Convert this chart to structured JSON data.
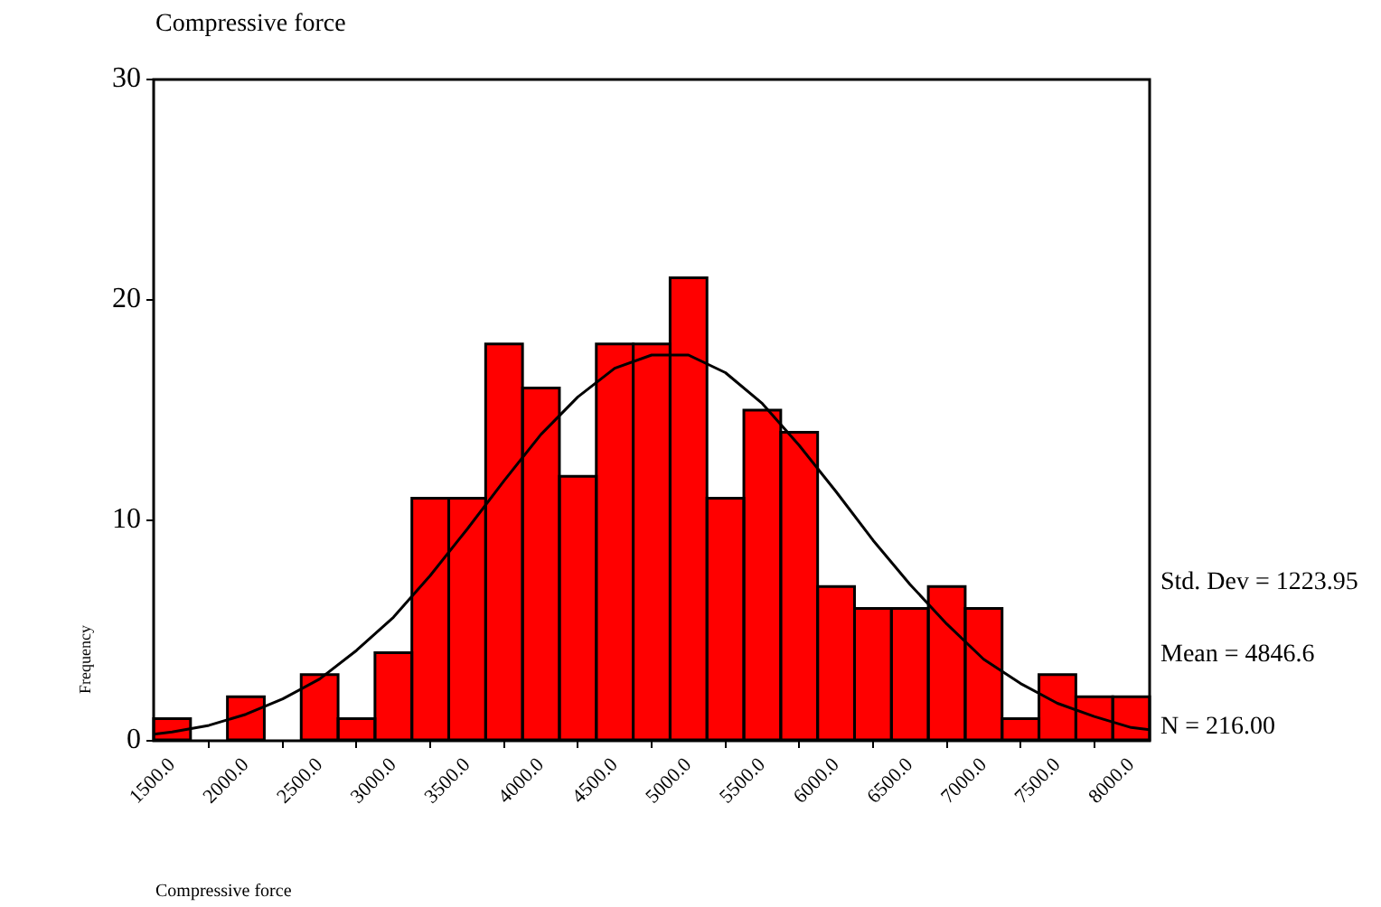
{
  "chart_data": {
    "type": "histogram",
    "title": "Compressive force",
    "xlabel": "Compressive force",
    "ylabel": "Frequency",
    "annotations": [
      "Std. Dev = 1223.95",
      "Mean = 4846.6",
      "N = 216.00"
    ],
    "bins": [
      1375,
      1625,
      1875,
      2125,
      2375,
      2625,
      2875,
      3125,
      3375,
      3625,
      3875,
      4125,
      4375,
      4625,
      4875,
      5125,
      5375,
      5625,
      5875,
      6125,
      6375,
      6625,
      6875,
      7125,
      7375,
      7625,
      7875,
      8125
    ],
    "values": [
      1,
      0,
      2,
      0,
      3,
      1,
      4,
      11,
      11,
      18,
      16,
      12,
      18,
      18,
      21,
      11,
      15,
      14,
      7,
      6,
      6,
      7,
      6,
      1,
      3,
      2,
      2
    ],
    "color": "#ff0000",
    "series": [
      {
        "type": "line",
        "color": "#000000",
        "x": [
          1375,
          1500,
          1750,
          2000,
          2250,
          2500,
          2750,
          3000,
          3250,
          3500,
          3750,
          4000,
          4250,
          4500,
          4750,
          5000,
          5250,
          5500,
          5750,
          6000,
          6250,
          6500,
          6750,
          7000,
          7250,
          7500,
          7750,
          8000,
          8125
        ],
        "values": [
          0.3,
          0.4,
          0.7,
          1.2,
          1.9,
          2.8,
          4.1,
          5.6,
          7.5,
          9.6,
          11.8,
          13.9,
          15.6,
          16.9,
          17.5,
          17.5,
          16.7,
          15.3,
          13.4,
          11.3,
          9.1,
          7.1,
          5.3,
          3.7,
          2.6,
          1.7,
          1.1,
          0.6,
          0.5
        ]
      }
    ],
    "marker": "none",
    "grid": false,
    "xlim": [
      1375,
      8125
    ],
    "xticks": [
      {
        "value": 1500,
        "label": "1500.0"
      },
      {
        "value": 2000,
        "label": "2000.0"
      },
      {
        "value": 2500,
        "label": "2500.0"
      },
      {
        "value": 3000,
        "label": "3000.0"
      },
      {
        "value": 3500,
        "label": "3500.0"
      },
      {
        "value": 4000,
        "label": "4000.0"
      },
      {
        "value": 4500,
        "label": "4500.0"
      },
      {
        "value": 5000,
        "label": "5000.0"
      },
      {
        "value": 5500,
        "label": "5500.0"
      },
      {
        "value": 6000,
        "label": "6000.0"
      },
      {
        "value": 6500,
        "label": "6500.0"
      },
      {
        "value": 7000,
        "label": "7000.0"
      },
      {
        "value": 7500,
        "label": "7500.0"
      },
      {
        "value": 8000,
        "label": "8000.0"
      }
    ],
    "ylim": [
      0,
      30
    ],
    "yticks": [
      0,
      10,
      20,
      30
    ]
  }
}
